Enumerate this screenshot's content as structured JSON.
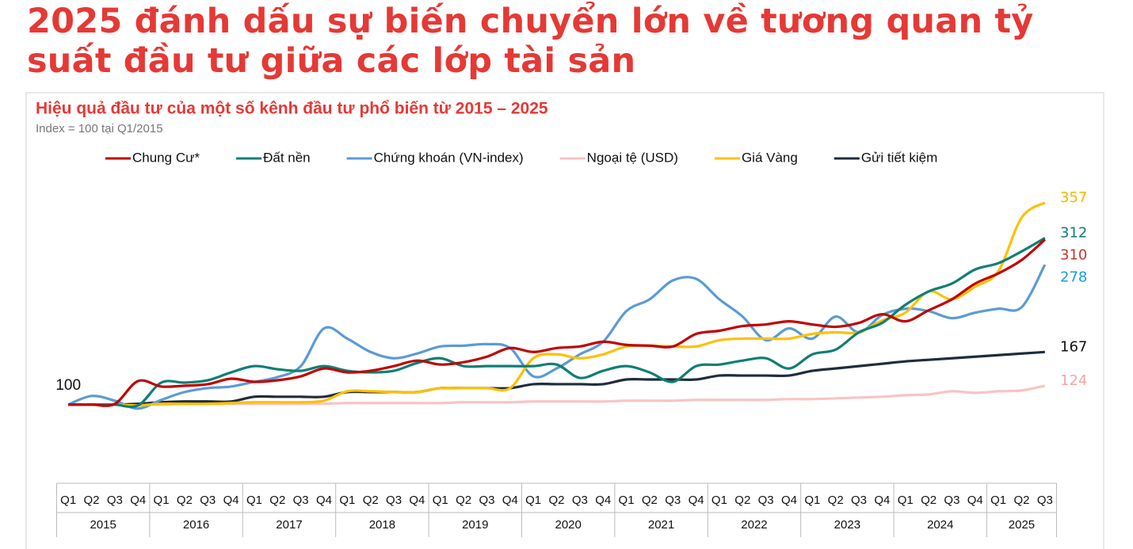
{
  "chart_data": {
    "type": "line",
    "headline": "2025 đánh dấu sự biến chuyển lớn về tương quan tỷ suất đầu tư giữa các lớp tài sản",
    "title": "Hiệu quả đầu tư của một số kênh đầu tư phổ biến từ 2015 – 2025",
    "subtitle": "Index = 100 tại Q1/2015",
    "start_value": 100,
    "categories": [
      "Q1",
      "Q2",
      "Q3",
      "Q4",
      "Q1",
      "Q2",
      "Q3",
      "Q4",
      "Q1",
      "Q2",
      "Q3",
      "Q4",
      "Q1",
      "Q2",
      "Q3",
      "Q4",
      "Q1",
      "Q2",
      "Q3",
      "Q4",
      "Q1",
      "Q2",
      "Q3",
      "Q4",
      "Q1",
      "Q2",
      "Q3",
      "Q4",
      "Q1",
      "Q2",
      "Q3",
      "Q4",
      "Q1",
      "Q2",
      "Q3",
      "Q4",
      "Q1",
      "Q2",
      "Q3",
      "Q4",
      "Q1",
      "Q2",
      "Q3"
    ],
    "x_groups": [
      "2015",
      "2016",
      "2017",
      "2018",
      "2019",
      "2020",
      "2021",
      "2022",
      "2023",
      "2024",
      "2025"
    ],
    "ylim": [
      5,
      383
    ],
    "grid": false,
    "legend": "top",
    "series": [
      {
        "name": "Chung Cư*",
        "color": "#c00000",
        "label_color": "#c0392b",
        "values": [
          100,
          100,
          101,
          130,
          123,
          124,
          126,
          133,
          129,
          131,
          136,
          146,
          141,
          143,
          149,
          156,
          151,
          154,
          161,
          172,
          167,
          172,
          174,
          180,
          176,
          175,
          174,
          190,
          194,
          200,
          202,
          206,
          202,
          199,
          204,
          215,
          206,
          220,
          234,
          254,
          267,
          284,
          310
        ]
      },
      {
        "name": "Đất nền",
        "color": "#0f7f74",
        "label_color": "#0f7f74",
        "values": [
          100,
          100,
          100,
          99,
          128,
          128,
          131,
          141,
          149,
          145,
          143,
          149,
          143,
          141,
          143,
          153,
          159,
          149,
          149,
          149,
          149,
          151,
          134,
          143,
          149,
          141,
          129,
          149,
          151,
          156,
          159,
          146,
          164,
          170,
          192,
          204,
          227,
          244,
          254,
          272,
          280,
          295,
          312
        ]
      },
      {
        "name": "Chứng khoán (VN-index)",
        "color": "#5b9bd5",
        "label_color": "#1a9be8",
        "values": [
          100,
          111,
          105,
          95,
          106,
          116,
          121,
          123,
          129,
          135,
          149,
          197,
          184,
          167,
          159,
          165,
          174,
          175,
          177,
          172,
          136,
          146,
          164,
          180,
          219,
          234,
          258,
          260,
          234,
          212,
          182,
          197,
          184,
          212,
          192,
          214,
          222,
          219,
          210,
          217,
          222,
          224,
          278
        ]
      },
      {
        "name": "Ngoại tệ (USD)",
        "color": "#f8c4c4",
        "label_color": "#f4a6a6",
        "values": [
          100,
          100,
          100,
          100,
          100,
          101,
          101,
          101,
          101,
          101,
          101,
          101,
          102,
          102,
          102,
          102,
          102,
          103,
          103,
          103,
          104,
          104,
          104,
          104,
          105,
          105,
          105,
          106,
          106,
          106,
          106,
          107,
          107,
          108,
          109,
          110,
          112,
          113,
          117,
          115,
          117,
          118,
          124
        ]
      },
      {
        "name": "Giá Vàng",
        "color": "#ffc000",
        "label_color": "#f2b800",
        "values": [
          100,
          100,
          100,
          99,
          101,
          101,
          101,
          102,
          103,
          103,
          103,
          105,
          117,
          117,
          116,
          116,
          121,
          121,
          121,
          121,
          159,
          164,
          159,
          164,
          174,
          175,
          174,
          174,
          182,
          184,
          184,
          184,
          190,
          192,
          192,
          207,
          217,
          244,
          234,
          250,
          270,
          338,
          357
        ]
      },
      {
        "name": "Gửi tiết kiệm",
        "color": "#1f2d3d",
        "label_color": "#111111",
        "values": [
          100,
          100,
          100,
          101,
          103,
          104,
          104,
          104,
          110,
          110,
          110,
          110,
          116,
          116,
          116,
          116,
          121,
          121,
          121,
          121,
          126,
          126,
          126,
          126,
          132,
          132,
          132,
          132,
          137,
          137,
          137,
          137,
          143,
          146,
          149,
          152,
          155,
          157,
          159,
          161,
          163,
          165,
          167
        ]
      }
    ]
  }
}
